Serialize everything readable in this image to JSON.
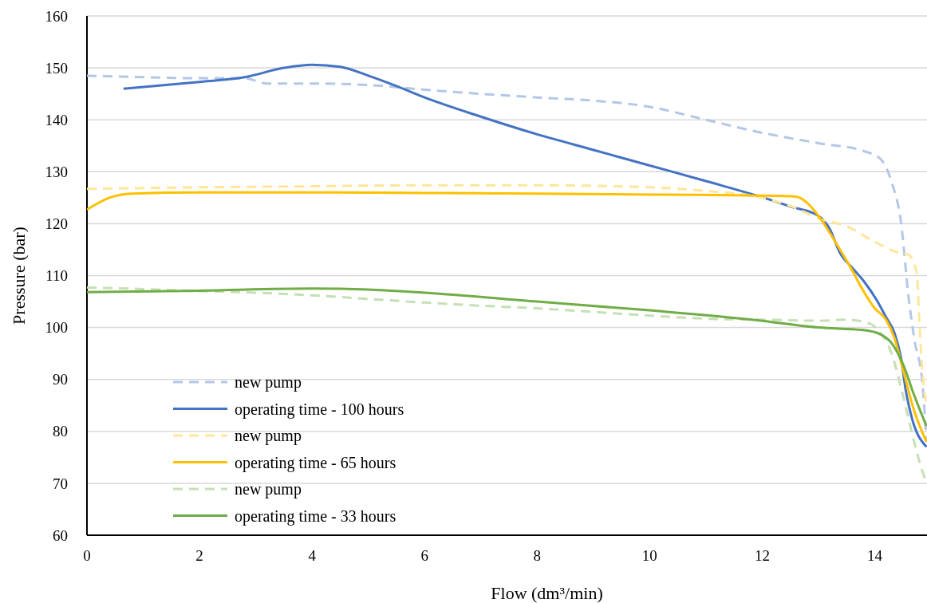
{
  "chart_data": {
    "type": "line",
    "xlabel": "Flow (dm³/min)",
    "ylabel": "Pressure (bar)",
    "xlim": [
      0,
      15
    ],
    "xticks": [
      0,
      2,
      4,
      6,
      8,
      10,
      12,
      14
    ],
    "ylim": [
      60,
      160
    ],
    "yticks": [
      60,
      70,
      80,
      90,
      100,
      110,
      120,
      130,
      140,
      150,
      160
    ],
    "grid": "y",
    "legend": "bottom left",
    "series": [
      {
        "name": "new pump",
        "color": "#b4c7e7",
        "line_style": "dashed",
        "x": [
          0,
          1,
          2,
          2.8,
          3.2,
          4,
          5,
          6,
          7,
          8,
          9,
          10,
          11,
          12,
          13,
          13.8,
          14.1,
          14.3,
          14.47,
          14.6,
          14.7,
          14.85,
          14.92
        ],
        "values": [
          148.5,
          148.2,
          148,
          148,
          147,
          147,
          146.7,
          145.8,
          145,
          144.3,
          143.7,
          142.5,
          140,
          137.5,
          135.5,
          134,
          132.5,
          128,
          120,
          106,
          98,
          89,
          78
        ]
      },
      {
        "name": "operating time - 100 hours",
        "color": "#4472c4",
        "line_style": "solid",
        "x": [
          0.65,
          2,
          2.8,
          3.5,
          4,
          4.5,
          5,
          5.5,
          6,
          7,
          8,
          9,
          10,
          11,
          12.2,
          12.5,
          13,
          13.2,
          13.38,
          13.6,
          13.8,
          14.04,
          14.2,
          14.35,
          14.47,
          14.55,
          14.65,
          14.92
        ],
        "values": [
          146,
          147.3,
          148.2,
          150,
          150.6,
          150.2,
          148.5,
          146.5,
          144.3,
          140.6,
          137.2,
          134.2,
          131.2,
          128.2,
          124.4,
          123.3,
          121.5,
          119,
          114.4,
          111.5,
          109,
          105.2,
          102,
          99,
          94,
          88,
          83,
          77
        ]
      },
      {
        "name": "new pump",
        "color": "#ffe699",
        "line_style": "dashed",
        "x": [
          0,
          2,
          4,
          6,
          8,
          10,
          11,
          12,
          12.6,
          13,
          13.5,
          14,
          14.4,
          14.6,
          14.75,
          14.78,
          14.82,
          14.87,
          14.92
        ],
        "values": [
          126.7,
          127,
          127.2,
          127.4,
          127.4,
          127,
          126.3,
          125,
          123,
          121,
          119.5,
          116.5,
          114.5,
          114,
          110.5,
          104,
          96,
          89,
          85
        ]
      },
      {
        "name": "operating time - 65 hours",
        "color": "#ffc000",
        "line_style": "solid",
        "x": [
          0,
          0.4,
          0.8,
          2,
          4,
          6,
          8,
          10,
          12,
          12.6,
          12.8,
          13,
          13.3,
          13.6,
          13.8,
          14,
          14.2,
          14.35,
          14.5,
          14.7,
          14.92
        ],
        "values": [
          122.7,
          125,
          125.8,
          126,
          126,
          125.9,
          125.8,
          125.6,
          125.4,
          125.2,
          124,
          121.5,
          116.5,
          111,
          107,
          103.7,
          101.5,
          98,
          92,
          84,
          78
        ]
      },
      {
        "name": "new pump",
        "color": "#c5e0b4",
        "line_style": "dashed",
        "x": [
          0,
          1,
          2,
          3,
          4,
          5,
          6,
          7,
          8,
          9,
          10,
          11,
          12,
          13,
          13.5,
          13.9,
          14.1,
          14.3,
          14.5,
          14.7,
          14.8,
          14.92
        ],
        "values": [
          107.7,
          107.4,
          107,
          106.7,
          106.2,
          105.5,
          104.8,
          104.2,
          103.7,
          103,
          102.3,
          101.7,
          101.5,
          101.3,
          101.5,
          100.8,
          99,
          95,
          87,
          78,
          74,
          70
        ]
      },
      {
        "name": "operating time - 33 hours",
        "color": "#70ad47",
        "line_style": "solid",
        "x": [
          0,
          2,
          4,
          5,
          6,
          8,
          10,
          12,
          13,
          13.8,
          14.1,
          14.3,
          14.5,
          14.7,
          14.92
        ],
        "values": [
          106.8,
          107.1,
          107.5,
          107.3,
          106.7,
          105,
          103.3,
          101.3,
          100,
          99.5,
          98.7,
          97,
          93,
          87,
          81
        ]
      }
    ]
  }
}
